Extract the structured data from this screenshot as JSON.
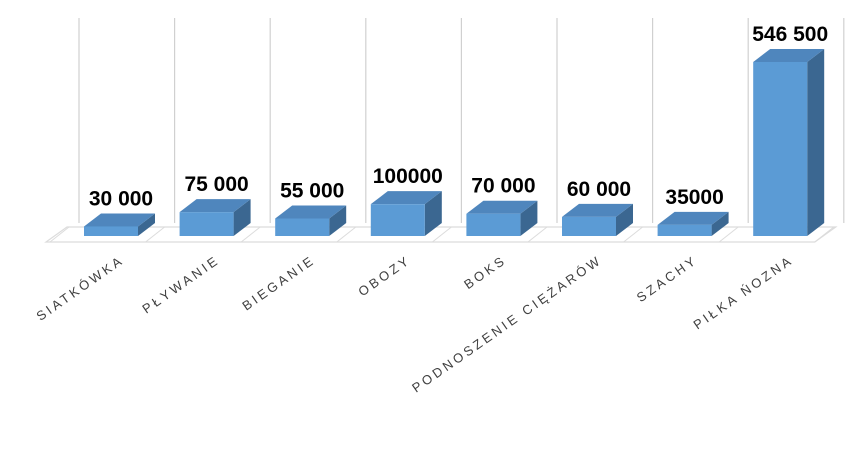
{
  "chart_data": {
    "type": "bar",
    "categories": [
      "SIATKÓWKA",
      "PŁYWANIE",
      "BIEGANIE",
      "OBOZY",
      "BOKS",
      "PODNOSZENIE CIĘŻARÓW",
      "SZACHY",
      "PIŁKA ŃOZNA"
    ],
    "values": [
      30000,
      75000,
      55000,
      100000,
      70000,
      60000,
      35000,
      546500
    ],
    "data_labels": [
      "30 000",
      "75 000",
      "55 000",
      "100000",
      "70 000",
      "60 000",
      "35000",
      "546 500"
    ],
    "title": "",
    "xlabel": "",
    "ylabel": "",
    "ylim": [
      0,
      560000
    ],
    "grid": "vertical category separators",
    "legend": "none",
    "style": "3d-column"
  },
  "colors": {
    "bar_front": "#5b9bd5",
    "bar_top": "#4f86bd",
    "bar_side": "#3b6791",
    "grid": "#d0d0d0",
    "floor": "#dcdcdc",
    "label": "#000000",
    "category_text": "#404040"
  }
}
